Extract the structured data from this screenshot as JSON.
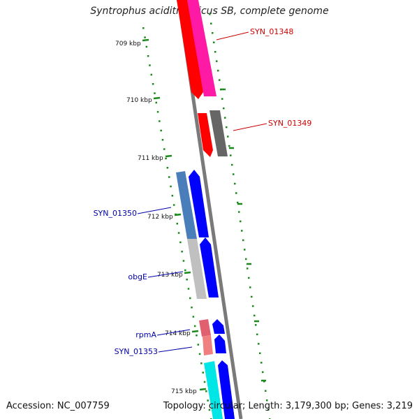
{
  "title": "Syntrophus aciditrophicus SB, complete genome",
  "accession": "Accession: NC_007759",
  "topology": "Topology: circular; Length: 3,179,300 bp; Genes: 3,219",
  "colors": {
    "backbone": "#808080",
    "tick": "#1a8a1a",
    "red_label": "#cc0000",
    "blue_label": "#0000aa"
  },
  "scale_labels": [
    "709 kbp",
    "710 kbp",
    "711 kbp",
    "712 kbp",
    "713 kbp",
    "714 kbp",
    "715 kbp"
  ],
  "gene_labels": [
    {
      "name": "SYN_01348",
      "color": "red"
    },
    {
      "name": "SYN_01349",
      "color": "red"
    },
    {
      "name": "SYN_01350",
      "color": "blue"
    },
    {
      "name": "obgE",
      "color": "blue"
    },
    {
      "name": "rpmA",
      "color": "blue"
    },
    {
      "name": "SYN_01353",
      "color": "blue"
    }
  ]
}
